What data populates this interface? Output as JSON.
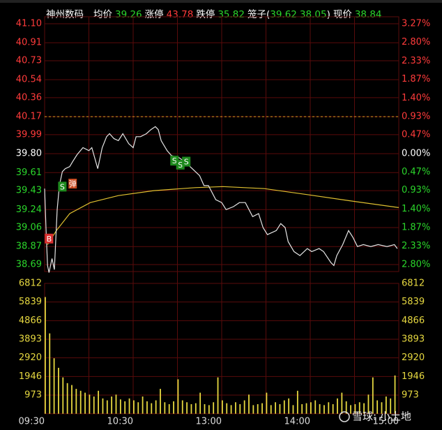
{
  "header": {
    "name": "神州数码",
    "fields": [
      {
        "label": "均价",
        "value": 39.26,
        "color": "#2bd62b"
      },
      {
        "label": "涨停",
        "value": 43.78,
        "color": "#ff3b3b"
      },
      {
        "label": "跌停",
        "value": 35.82,
        "color": "#2bd62b"
      }
    ],
    "cage": {
      "open": "笼子(",
      "a": 39.62,
      "b": 38.05,
      "close": ")",
      "color": "#2bd62b"
    },
    "price": {
      "label": "现价",
      "value": 38.84,
      "color": "#2bd62b"
    }
  },
  "watermark": "雪球: 小土地",
  "chart_data": [
    {
      "type": "line",
      "xlim": [
        0,
        240
      ],
      "xticks": [
        {
          "value": 0,
          "label": "09:30"
        },
        {
          "value": 60,
          "label": "10:30"
        },
        {
          "value": 120,
          "label": "13:00"
        },
        {
          "value": 180,
          "label": "14:00"
        },
        {
          "value": 240,
          "label": "15:00"
        }
      ],
      "ylim": [
        38.69,
        41.1
      ],
      "yticks": [
        {
          "value": 41.1,
          "label": "41.10"
        },
        40.91,
        40.73,
        40.54,
        40.36,
        40.17,
        39.99,
        {
          "value": 39.8,
          "label": "39.80"
        },
        39.61,
        39.43,
        39.24,
        39.06,
        38.87,
        38.69
      ],
      "y2lim": [
        -2.8,
        3.27
      ],
      "y2ticks": [
        {
          "value": 3.27,
          "label": "3.27%"
        },
        {
          "value": 2.8,
          "label": "2.80%"
        },
        {
          "value": 2.33,
          "label": "2.33%"
        },
        {
          "value": 1.87,
          "label": "1.87%"
        },
        {
          "value": 1.4,
          "label": "1.40%"
        },
        {
          "value": 0.93,
          "label": "0.93%"
        },
        {
          "value": 0.47,
          "label": "0.47%"
        },
        {
          "value": 0,
          "label": "0.00%"
        },
        {
          "value": -0.47,
          "label": "0.47%"
        },
        {
          "value": -0.93,
          "label": "0.93%"
        },
        {
          "value": -1.4,
          "label": "1.40%"
        },
        {
          "value": -1.87,
          "label": "1.87%"
        },
        {
          "value": -2.33,
          "label": "2.33%"
        },
        {
          "value": -2.8,
          "label": "2.80%"
        }
      ],
      "up_color": "#ff3b3b",
      "down_color": "#2bd62b",
      "flat_color": "#ffffff",
      "grid": true,
      "grid_color": "#5a0b0b",
      "reference_line": 40.17,
      "reference_color": "#e0a020",
      "series": [
        {
          "name": "price",
          "color": "#e6e6e6",
          "x": [
            0,
            1,
            2,
            3,
            5,
            6.6,
            8.5,
            10,
            12,
            14,
            17,
            19,
            22,
            26,
            30,
            32,
            36,
            39,
            42,
            44,
            47,
            50,
            53,
            57,
            60,
            62,
            65,
            69,
            72,
            75,
            77,
            79,
            83,
            86,
            91,
            95,
            100,
            105,
            108,
            111,
            116,
            120,
            123,
            128,
            132,
            136,
            141,
            145,
            148,
            151,
            157,
            160,
            163,
            165,
            169,
            173,
            178,
            181,
            186,
            189,
            194,
            196,
            198,
            202,
            206,
            209,
            212,
            216,
            221,
            226,
            232,
            237,
            239
          ],
          "values": [
            39.45,
            39.03,
            38.68,
            38.61,
            38.75,
            38.64,
            39.24,
            39.48,
            39.62,
            39.65,
            39.67,
            39.72,
            39.79,
            39.86,
            39.83,
            39.86,
            39.65,
            39.86,
            39.97,
            40.0,
            39.95,
            39.93,
            40.0,
            39.9,
            39.86,
            39.97,
            39.97,
            40.0,
            40.04,
            40.07,
            40.04,
            39.93,
            39.83,
            39.78,
            39.76,
            39.72,
            39.65,
            39.58,
            39.48,
            39.48,
            39.34,
            39.31,
            39.24,
            39.27,
            39.31,
            39.31,
            39.17,
            39.2,
            39.06,
            38.99,
            39.03,
            39.1,
            39.06,
            38.92,
            38.82,
            38.78,
            38.85,
            38.82,
            38.85,
            38.82,
            38.71,
            38.68,
            38.78,
            38.89,
            39.03,
            38.96,
            38.87,
            38.89,
            38.87,
            38.89,
            38.87,
            38.89,
            38.85
          ]
        },
        {
          "name": "avg",
          "color": "#e0c030",
          "x": [
            2,
            8,
            17,
            31,
            50,
            74,
            102,
            121,
            149,
            178,
            206,
            240
          ],
          "values": [
            38.89,
            39.03,
            39.2,
            39.31,
            39.38,
            39.43,
            39.46,
            39.47,
            39.45,
            39.39,
            39.33,
            39.26
          ]
        }
      ],
      "annotations": [
        {
          "text": "B",
          "x": 3,
          "y": 38.95,
          "color": "#d83030"
        },
        {
          "text": "S",
          "x": 12,
          "y": 39.47,
          "color": "#1e8a1e"
        },
        {
          "text": "弹",
          "x": 19,
          "y": 39.5,
          "color": "#c84a20"
        },
        {
          "text": "S",
          "x": 88,
          "y": 39.73,
          "color": "#1e8a1e"
        },
        {
          "text": "S",
          "x": 92,
          "y": 39.69,
          "color": "#1e8a1e"
        },
        {
          "text": "S",
          "x": 96,
          "y": 39.72,
          "color": "#1e8a1e"
        }
      ]
    },
    {
      "type": "bar",
      "color": "#e6d840",
      "xlim": [
        0,
        240
      ],
      "ylim": [
        0,
        6812
      ],
      "yticks": [
        973,
        1946,
        2920,
        3893,
        4866,
        5839,
        6812
      ],
      "tick_color": "#e6d840",
      "x": [
        0,
        3,
        6,
        9,
        12,
        15,
        18,
        21,
        24,
        27,
        30,
        33,
        36,
        39,
        42,
        45,
        48,
        51,
        54,
        57,
        60,
        63,
        66,
        69,
        72,
        75,
        78,
        81,
        84,
        87,
        90,
        93,
        96,
        99,
        102,
        105,
        108,
        111,
        114,
        117,
        120,
        123,
        126,
        129,
        132,
        135,
        138,
        141,
        144,
        147,
        150,
        153,
        156,
        159,
        162,
        165,
        168,
        171,
        174,
        177,
        180,
        183,
        186,
        189,
        192,
        195,
        198,
        201,
        204,
        207,
        210,
        213,
        216,
        219,
        222,
        225,
        228,
        231,
        234,
        237
      ],
      "values": [
        6100,
        4200,
        2900,
        2400,
        1900,
        1600,
        1500,
        1300,
        1200,
        1100,
        1000,
        900,
        1200,
        800,
        700,
        900,
        1000,
        750,
        650,
        800,
        700,
        600,
        900,
        650,
        550,
        700,
        1300,
        600,
        500,
        650,
        1800,
        700,
        600,
        500,
        550,
        1100,
        500,
        450,
        600,
        1900,
        700,
        550,
        450,
        600,
        500,
        700,
        1000,
        450,
        500,
        550,
        1100,
        450,
        600,
        500,
        700,
        800,
        450,
        1200,
        500,
        550,
        600,
        700,
        500,
        450,
        600,
        500,
        800,
        1100,
        650,
        450,
        500,
        600,
        550,
        1000,
        1900,
        700,
        600,
        900,
        800,
        2000
      ]
    }
  ]
}
